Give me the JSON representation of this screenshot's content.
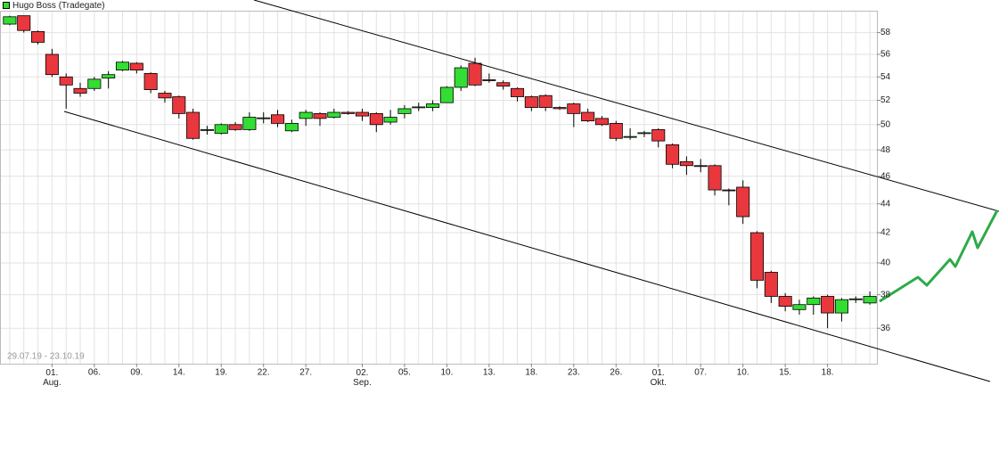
{
  "chart_data": {
    "type": "candlestick",
    "date_range": "29.07.19 - 23.10.19",
    "categories": [
      null,
      null,
      null,
      "01.\nAug.",
      null,
      null,
      "06.",
      null,
      null,
      "09.",
      null,
      null,
      "14.",
      null,
      null,
      "19.",
      null,
      null,
      "22.",
      null,
      null,
      "27.",
      null,
      null,
      null,
      "02.\nSep.",
      null,
      null,
      "05.",
      null,
      null,
      "10.",
      null,
      null,
      "13.",
      null,
      null,
      "18.",
      null,
      null,
      "23.",
      null,
      null,
      "26.",
      null,
      null,
      "01.\nOkt.",
      null,
      null,
      "07.",
      null,
      null,
      "10.",
      null,
      null,
      "15.",
      null,
      null,
      "18.",
      null,
      null,
      null
    ],
    "series": [
      {
        "name": "Hugo Boss (Tradegate)",
        "color": "#33dd33",
        "up_color": "#33dd33",
        "down_color": "#e8383d",
        "open": [
          58.8,
          59.6,
          58.1,
          56.0,
          54.0,
          53.0,
          53.0,
          53.9,
          54.6,
          55.2,
          54.3,
          52.6,
          52.3,
          51.0,
          49.55,
          49.3,
          50.0,
          49.6,
          50.5,
          50.8,
          49.5,
          50.5,
          50.9,
          50.6,
          51.0,
          51.0,
          50.9,
          50.2,
          50.9,
          51.4,
          51.4,
          51.8,
          53.1,
          55.2,
          53.75,
          53.5,
          53.0,
          52.3,
          52.4,
          51.4,
          51.7,
          51.0,
          50.5,
          50.1,
          49.0,
          49.3,
          49.6,
          48.4,
          47.1,
          46.8,
          46.8,
          45.0,
          45.2,
          42.0,
          39.4,
          37.9,
          37.1,
          37.4,
          37.9,
          36.9,
          37.7,
          37.5
        ],
        "high": [
          59.6,
          59.6,
          58.2,
          56.5,
          54.3,
          53.5,
          54.0,
          54.5,
          55.4,
          55.3,
          54.4,
          52.8,
          52.4,
          51.3,
          49.9,
          50.1,
          50.2,
          51.0,
          51.0,
          51.2,
          50.4,
          51.2,
          51.0,
          51.3,
          51.1,
          51.3,
          51.0,
          51.2,
          51.6,
          51.8,
          52.0,
          53.2,
          55.0,
          55.7,
          54.3,
          53.7,
          53.1,
          52.4,
          52.5,
          51.5,
          51.8,
          51.3,
          50.7,
          50.3,
          49.7,
          49.5,
          49.7,
          48.5,
          47.5,
          47.3,
          46.9,
          45.1,
          45.7,
          42.1,
          39.5,
          38.1,
          37.7,
          37.9,
          38.0,
          37.8,
          37.9,
          38.2
        ],
        "low": [
          58.7,
          58.0,
          56.9,
          54.0,
          51.3,
          52.3,
          52.8,
          53.0,
          54.5,
          54.3,
          52.6,
          51.8,
          50.5,
          48.8,
          49.2,
          49.2,
          49.5,
          49.5,
          50.1,
          49.8,
          49.4,
          49.9,
          49.9,
          50.5,
          50.8,
          50.3,
          49.4,
          50.0,
          50.5,
          51.1,
          51.1,
          51.8,
          52.8,
          53.2,
          53.5,
          52.9,
          51.9,
          51.1,
          51.1,
          51.2,
          49.8,
          50.2,
          49.9,
          48.7,
          48.8,
          49.0,
          48.2,
          46.6,
          46.1,
          46.3,
          44.6,
          43.9,
          42.6,
          38.4,
          37.5,
          37.0,
          36.8,
          36.8,
          36.0,
          36.4,
          37.5,
          37.4
        ],
        "close": [
          59.5,
          58.2,
          57.1,
          54.2,
          53.3,
          52.6,
          53.8,
          54.2,
          55.3,
          54.6,
          52.9,
          52.2,
          50.9,
          48.9,
          49.6,
          50.0,
          49.6,
          50.6,
          50.55,
          50.1,
          50.1,
          51.0,
          50.5,
          51.0,
          50.9,
          50.7,
          50.0,
          50.6,
          51.3,
          51.45,
          51.7,
          53.1,
          54.8,
          53.3,
          53.7,
          53.2,
          52.3,
          51.4,
          51.4,
          51.3,
          50.9,
          50.3,
          50.0,
          48.9,
          49.05,
          49.35,
          48.7,
          46.9,
          46.8,
          46.75,
          45.0,
          44.95,
          43.1,
          38.9,
          37.9,
          37.3,
          37.4,
          37.8,
          36.9,
          37.7,
          37.75,
          37.9
        ]
      }
    ],
    "log_scale": true,
    "ylim": [
      34,
      60
    ],
    "yticks": [
      36,
      38,
      40,
      42,
      44,
      46,
      48,
      50,
      52,
      54,
      56,
      58
    ],
    "grid": true
  }
}
